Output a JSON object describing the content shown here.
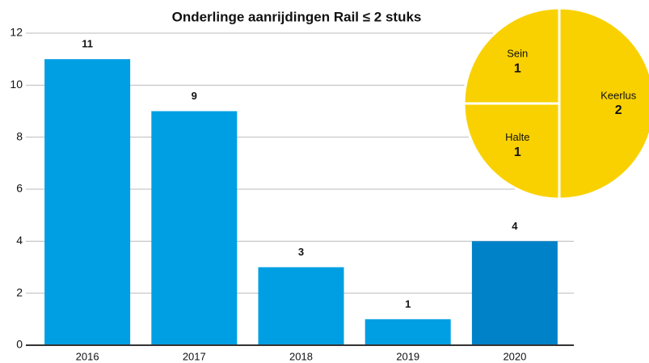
{
  "chart_data": [
    {
      "type": "bar",
      "title": "Onderlinge aanrijdingen Rail ≤ 2 stuks",
      "categories": [
        "2016",
        "2017",
        "2018",
        "2019",
        "2020"
      ],
      "values": [
        11,
        9,
        3,
        1,
        4
      ],
      "colors": [
        "#009fe3",
        "#009fe3",
        "#009fe3",
        "#009fe3",
        "#0082c9"
      ],
      "ylim": [
        0,
        12
      ],
      "yticks": [
        0,
        2,
        4,
        6,
        8,
        10,
        12
      ],
      "grid": true
    },
    {
      "type": "pie",
      "categories": [
        "Keerlus",
        "Halte",
        "Sein"
      ],
      "values": [
        2,
        1,
        1
      ],
      "color": "#f9d100"
    }
  ]
}
